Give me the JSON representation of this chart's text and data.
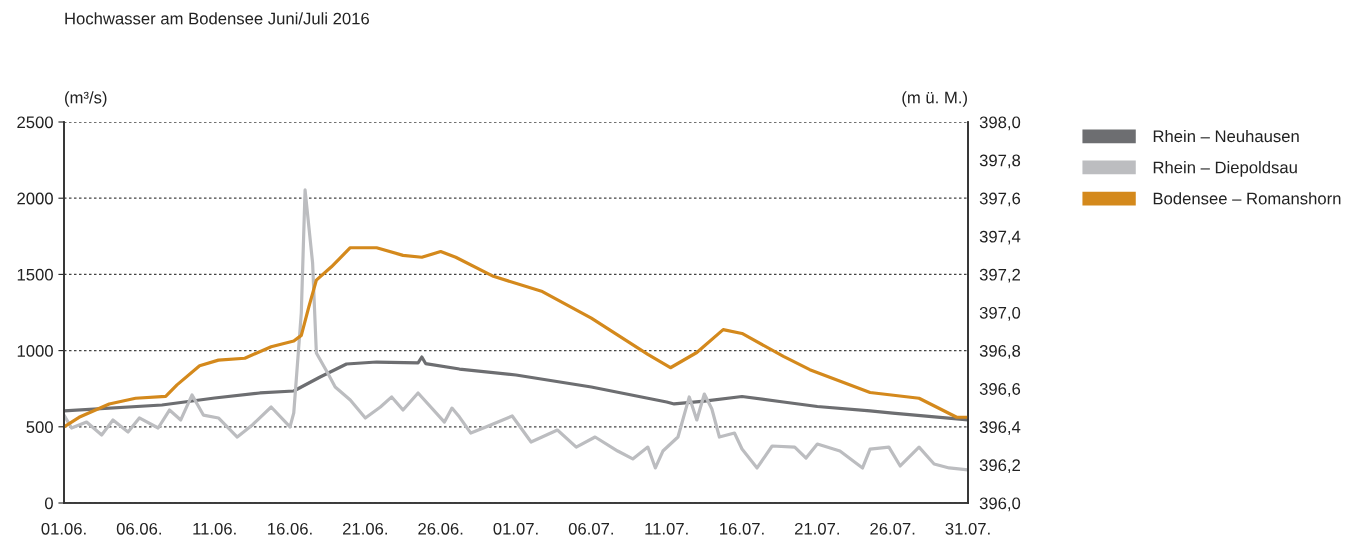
{
  "chart_data": {
    "type": "line",
    "title": "Hochwasser am Bodensee Juni/Juli 2016",
    "ylabel": "(m³/s)",
    "y2label": "(m ü. M.)",
    "xlim": [
      "2016-06-01",
      "2016-07-31"
    ],
    "xticks": [
      {
        "value": "2016-06-01",
        "label": "01.06."
      },
      {
        "value": "2016-06-06",
        "label": "06.06."
      },
      {
        "value": "2016-06-11",
        "label": "11.06."
      },
      {
        "value": "2016-06-16",
        "label": "16.06."
      },
      {
        "value": "2016-06-21",
        "label": "21.06."
      },
      {
        "value": "2016-06-26",
        "label": "26.06."
      },
      {
        "value": "2016-07-01",
        "label": "01.07."
      },
      {
        "value": "2016-07-06",
        "label": "06.07."
      },
      {
        "value": "2016-07-11",
        "label": "11.07."
      },
      {
        "value": "2016-07-16",
        "label": "16.07."
      },
      {
        "value": "2016-07-21",
        "label": "21.07."
      },
      {
        "value": "2016-07-26",
        "label": "26.07."
      },
      {
        "value": "2016-07-31",
        "label": "31.07."
      }
    ],
    "ylim": [
      0,
      2500
    ],
    "yticks": [
      0,
      500,
      1000,
      1500,
      2000,
      2500
    ],
    "y2lim": [
      396.0,
      398.0
    ],
    "y2ticks": [
      {
        "value": 396.0,
        "label": "396,0"
      },
      {
        "value": 396.2,
        "label": "396,2"
      },
      {
        "value": 396.4,
        "label": "396,4"
      },
      {
        "value": 396.6,
        "label": "396,6"
      },
      {
        "value": 396.8,
        "label": "396,8"
      },
      {
        "value": 397.0,
        "label": "397,0"
      },
      {
        "value": 397.2,
        "label": "397,2"
      },
      {
        "value": 397.4,
        "label": "397,4"
      },
      {
        "value": 397.6,
        "label": "397,6"
      },
      {
        "value": 397.8,
        "label": "397,8"
      },
      {
        "value": 398.0,
        "label": "398,0"
      }
    ],
    "grid": "y",
    "legend": "right",
    "series": [
      {
        "name": "Rhein – Neuhausen",
        "color": "#6d6e71",
        "x": [
          "2016-06-01",
          "2016-06-07T12:00",
          "2016-06-11",
          "2016-06-14",
          "2016-06-16T06:00",
          "2016-06-18",
          "2016-06-19T18:00",
          "2016-06-21T18:00",
          "2016-06-24T12:00",
          "2016-06-24T18:00",
          "2016-06-25",
          "2016-06-27T06:00",
          "2016-07-01",
          "2016-07-06",
          "2016-07-11",
          "2016-07-11T12:00",
          "2016-07-13T12:00",
          "2016-07-16",
          "2016-07-18T18:00",
          "2016-07-21",
          "2016-07-24T12:00",
          "2016-07-26",
          "2016-07-31"
        ],
        "values": [
          604,
          643,
          689,
          722,
          735,
          827,
          912,
          925,
          919,
          958,
          915,
          879,
          840,
          761,
          663,
          650,
          669,
          699,
          663,
          633,
          604,
          590,
          545
        ]
      },
      {
        "name": "Rhein – Diepoldsau",
        "color": "#bcbdc0",
        "x": [
          "2016-06-01",
          "2016-06-01T12:00",
          "2016-06-02T12:00",
          "2016-06-03T12:00",
          "2016-06-04T06:00",
          "2016-06-05T06:00",
          "2016-06-06",
          "2016-06-07T06:00",
          "2016-06-08",
          "2016-06-08T18:00",
          "2016-06-09T12:00",
          "2016-06-10T06:00",
          "2016-06-11T06:00",
          "2016-06-12T12:00",
          "2016-06-13T12:00",
          "2016-06-14T18:00",
          "2016-06-16",
          "2016-06-16T06:00",
          "2016-06-16T18:00",
          "2016-06-17",
          "2016-06-17T12:00",
          "2016-06-17T18:00",
          "2016-06-18T12:00",
          "2016-06-19",
          "2016-06-20",
          "2016-06-21",
          "2016-06-22",
          "2016-06-22T18:00",
          "2016-06-23T12:00",
          "2016-06-24T12:00",
          "2016-06-26T06:00",
          "2016-06-26T18:00",
          "2016-06-27T06:00",
          "2016-06-28",
          "2016-06-29",
          "2016-06-30T18:00",
          "2016-07-02",
          "2016-07-03T18:00",
          "2016-07-05",
          "2016-07-06T06:00",
          "2016-07-07T18:00",
          "2016-07-08T18:00",
          "2016-07-09T18:00",
          "2016-07-10T06:00",
          "2016-07-10T18:00",
          "2016-07-11T18:00",
          "2016-07-12T12:00",
          "2016-07-13",
          "2016-07-13T12:00",
          "2016-07-14",
          "2016-07-14T12:00",
          "2016-07-15T12:00",
          "2016-07-16",
          "2016-07-17",
          "2016-07-18",
          "2016-07-19T12:00",
          "2016-07-20T06:00",
          "2016-07-21",
          "2016-07-22T12:00",
          "2016-07-24",
          "2016-07-24T12:00",
          "2016-07-25T18:00",
          "2016-07-26T12:00",
          "2016-07-27T18:00",
          "2016-07-28T18:00",
          "2016-07-29T18:00",
          "2016-07-31"
        ],
        "values": [
          577,
          492,
          531,
          446,
          545,
          466,
          558,
          492,
          610,
          545,
          709,
          577,
          558,
          433,
          512,
          630,
          499,
          591,
          1247,
          2054,
          1575,
          984,
          853,
          761,
          676,
          558,
          630,
          696,
          610,
          722,
          531,
          623,
          564,
          459,
          499,
          571,
          400,
          479,
          367,
          433,
          341,
          289,
          367,
          230,
          341,
          433,
          696,
          545,
          715,
          617,
          433,
          459,
          354,
          230,
          374,
          367,
          295,
          387,
          341,
          230,
          354,
          367,
          243,
          367,
          256,
          230,
          217
        ]
      },
      {
        "name": "Bodensee – Romanshorn",
        "color": "#d4891c",
        "axis": "y2",
        "x": [
          "2016-06-01",
          "2016-06-02",
          "2016-06-04",
          "2016-06-05T18:00",
          "2016-06-07T18:00",
          "2016-06-08T12:00",
          "2016-06-10",
          "2016-06-11T06:00",
          "2016-06-13",
          "2016-06-14T18:00",
          "2016-06-16T06:00",
          "2016-06-16T18:00",
          "2016-06-17T06:00",
          "2016-06-17T18:00",
          "2016-06-18T18:00",
          "2016-06-20",
          "2016-06-21T18:00",
          "2016-06-23T12:00",
          "2016-06-24T18:00",
          "2016-06-26",
          "2016-06-27",
          "2016-06-29T12:00",
          "2016-07-02T18:00",
          "2016-07-06",
          "2016-07-09T18:00",
          "2016-07-11T06:00",
          "2016-07-13",
          "2016-07-14T18:00",
          "2016-07-16",
          "2016-07-18T18:00",
          "2016-07-20T12:00",
          "2016-07-24T12:00",
          "2016-07-27T18:00",
          "2016-07-30T06:00",
          "2016-07-31"
        ],
        "values": [
          396.4,
          396.45,
          396.52,
          396.55,
          396.56,
          396.62,
          396.72,
          396.75,
          396.76,
          396.82,
          396.85,
          396.88,
          397.03,
          397.17,
          397.24,
          397.34,
          397.34,
          397.3,
          397.29,
          397.32,
          397.29,
          397.19,
          397.11,
          396.97,
          396.78,
          396.71,
          396.79,
          396.91,
          396.89,
          396.77,
          396.7,
          396.58,
          396.55,
          396.45,
          396.45
        ]
      }
    ]
  }
}
